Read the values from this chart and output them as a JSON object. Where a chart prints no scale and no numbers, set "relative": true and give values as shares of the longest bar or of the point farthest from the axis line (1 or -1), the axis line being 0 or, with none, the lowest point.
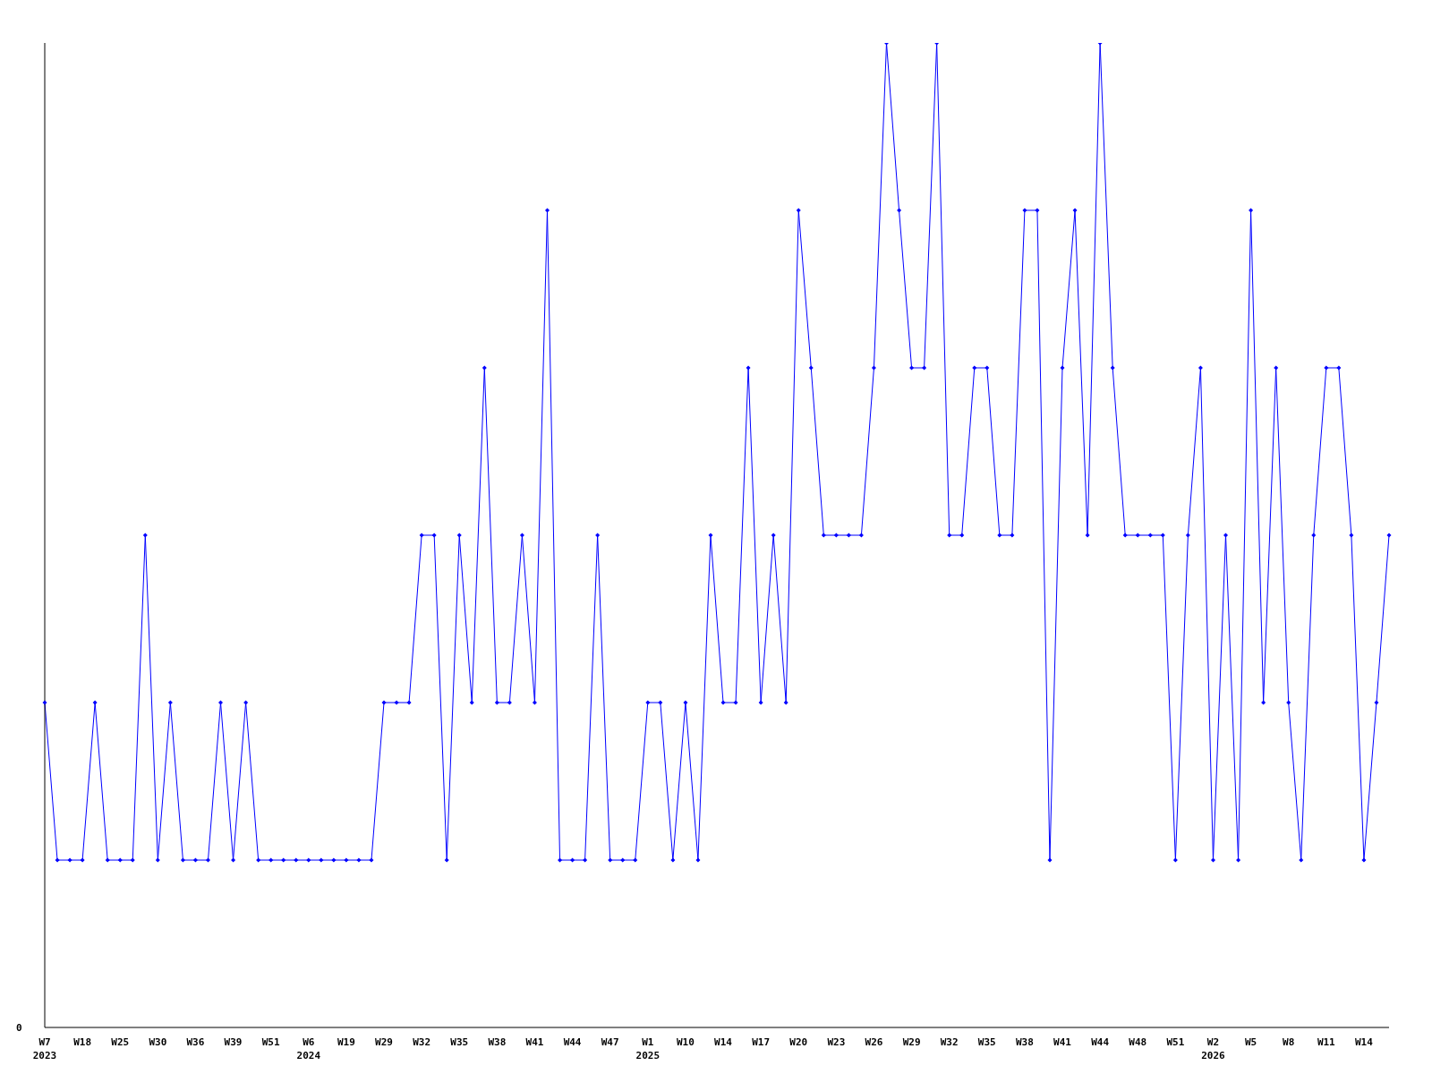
{
  "chart_data": {
    "type": "line",
    "relative": true,
    "categories": [
      "W7\n2023",
      null,
      null,
      "W18",
      null,
      null,
      "W25",
      null,
      null,
      "W30",
      null,
      null,
      "W36",
      null,
      null,
      "W39",
      null,
      null,
      "W51",
      null,
      null,
      "W6\n2024",
      null,
      null,
      "W19",
      null,
      null,
      "W29",
      null,
      null,
      "W32",
      null,
      null,
      "W35",
      null,
      null,
      "W38",
      null,
      null,
      "W41",
      null,
      null,
      "W44",
      null,
      null,
      "W47",
      null,
      null,
      "W1\n2025",
      null,
      null,
      "W10",
      null,
      null,
      "W14",
      null,
      null,
      "W17",
      null,
      null,
      "W20",
      null,
      null,
      "W23",
      null,
      null,
      "W26",
      null,
      null,
      "W29",
      null,
      null,
      "W32",
      null,
      null,
      "W35",
      null,
      null,
      "W38",
      null,
      null,
      "W41",
      null,
      null,
      "W44",
      null,
      null,
      "W48",
      null,
      null,
      "W51",
      null,
      null,
      "W2\n2026",
      null,
      null,
      "W5",
      null,
      null,
      "W8",
      null,
      null,
      "W11",
      null,
      null,
      "W14",
      null,
      null
    ],
    "series": [
      {
        "color": "#0000ff",
        "values": [
          0.33,
          0.17,
          0.17,
          0.17,
          0.33,
          0.17,
          0.17,
          0.17,
          0.5,
          0.17,
          0.33,
          0.17,
          0.17,
          0.17,
          0.33,
          0.17,
          0.33,
          0.17,
          0.17,
          0.17,
          0.17,
          0.17,
          0.17,
          0.17,
          0.17,
          0.17,
          0.17,
          0.33,
          0.33,
          0.33,
          0.5,
          0.5,
          0.17,
          0.5,
          0.33,
          0.67,
          0.33,
          0.33,
          0.5,
          0.33,
          0.83,
          0.17,
          0.17,
          0.17,
          0.5,
          0.17,
          0.17,
          0.17,
          0.33,
          0.33,
          0.17,
          0.33,
          0.17,
          0.5,
          0.33,
          0.33,
          0.67,
          0.33,
          0.5,
          0.33,
          0.83,
          0.67,
          0.5,
          0.5,
          0.5,
          0.5,
          0.67,
          1,
          0.83,
          0.67,
          0.67,
          1,
          0.5,
          0.5,
          0.67,
          0.67,
          0.5,
          0.5,
          0.83,
          0.83,
          0.17,
          0.67,
          0.83,
          0.5,
          1,
          0.67,
          0.5,
          0.5,
          0.5,
          0.5,
          0.17,
          0.5,
          0.67,
          0.17,
          0.5,
          0.17,
          0.83,
          0.33,
          0.67,
          0.33,
          0.17,
          0.5,
          0.67,
          0.67,
          0.5,
          0.17,
          0.33,
          0.5
        ]
      }
    ],
    "annotations": [
      "0"
    ],
    "marker": "diamond",
    "line_style": "solid",
    "grid": false,
    "legend": false
  }
}
